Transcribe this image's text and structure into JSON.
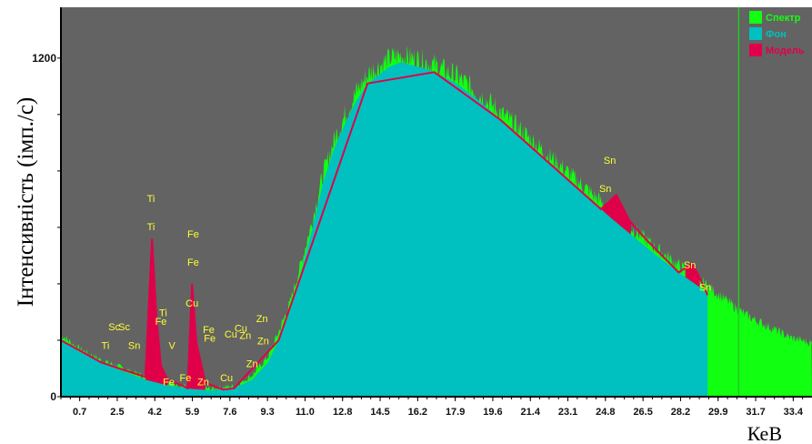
{
  "chart_data": {
    "type": "area",
    "ylabel": "Інтенсивність (імп./с)",
    "xlabel": "КеВ",
    "xlim": [
      0.2,
      34.0
    ],
    "ylim": [
      0,
      1380
    ],
    "x_ticks": [
      "0.7",
      "2.5",
      "4.2",
      "5.9",
      "7.6",
      "9.3",
      "11.0",
      "12.8",
      "14.5",
      "16.2",
      "17.9",
      "19.6",
      "21.4",
      "23.1",
      "24.8",
      "26.5",
      "28.2",
      "29.9",
      "31.7",
      "33.4"
    ],
    "y_tick_labels": [
      {
        "value": 0,
        "label": "0"
      },
      {
        "value": 1200,
        "label": "1200"
      }
    ],
    "colors": {
      "plot_bg": "#636363",
      "spectrum": "#11ff11",
      "background": "#00c0c0",
      "model": "#e0004a",
      "marker_line": "#22cc22",
      "peak_label": "#ffff33"
    },
    "marker_x": 30.7,
    "legend": [
      {
        "label": "Спектр",
        "color": "#11ff11"
      },
      {
        "label": "Фон",
        "color": "#00c0c0"
      },
      {
        "label": "Модель",
        "color": "#e0004a"
      }
    ],
    "series": [
      {
        "name": "Фон",
        "x": [
          0.2,
          1.0,
          2.0,
          3.0,
          4.0,
          5.0,
          6.0,
          7.0,
          8.0,
          8.8,
          9.5,
          10.0,
          10.5,
          11.0,
          11.5,
          12.0,
          12.5,
          13.0,
          13.5,
          14.0,
          15.0,
          15.5,
          16.0,
          16.5,
          17.0,
          18.0,
          19.0,
          20.0,
          21.0,
          22.0,
          23.0,
          24.0,
          25.0,
          26.0,
          27.0,
          28.0,
          29.0,
          29.3
        ],
        "values": [
          200,
          160,
          120,
          90,
          60,
          40,
          28,
          22,
          30,
          60,
          120,
          200,
          300,
          440,
          590,
          760,
          880,
          970,
          1050,
          1110,
          1170,
          1185,
          1175,
          1165,
          1150,
          1110,
          1050,
          980,
          910,
          840,
          770,
          700,
          630,
          565,
          500,
          440,
          385,
          360
        ]
      },
      {
        "name": "Спектр",
        "x": [
          0.2,
          1.0,
          2.0,
          3.0,
          4.0,
          5.0,
          6.0,
          7.0,
          8.0,
          8.8,
          9.5,
          10.0,
          10.5,
          11.0,
          11.5,
          12.0,
          12.5,
          13.0,
          13.5,
          14.0,
          15.0,
          15.5,
          16.0,
          16.5,
          17.0,
          18.0,
          19.0,
          20.0,
          21.0,
          22.0,
          23.0,
          24.0,
          25.0,
          26.0,
          27.0,
          28.0,
          29.0,
          30.0,
          31.0,
          32.0,
          33.0,
          34.0
        ],
        "values": [
          220,
          170,
          130,
          100,
          70,
          48,
          35,
          28,
          38,
          75,
          140,
          230,
          330,
          470,
          620,
          790,
          910,
          1000,
          1080,
          1140,
          1200,
          1210,
          1200,
          1190,
          1175,
          1135,
          1075,
          1005,
          935,
          865,
          795,
          725,
          655,
          590,
          525,
          465,
          410,
          350,
          290,
          250,
          210,
          190
        ]
      },
      {
        "name": "Модель",
        "x": [
          0.2,
          1.0,
          2.0,
          3.0,
          4.0,
          4.3,
          4.5,
          4.7,
          5.0,
          5.5,
          5.9,
          6.1,
          6.3,
          6.7,
          7.5,
          8.0,
          10.0,
          14.0,
          17.0,
          20.0,
          23.0,
          24.5,
          25.2,
          25.8,
          26.5,
          28.0,
          28.6,
          28.9,
          29.3
        ],
        "values": [
          200,
          165,
          122,
          95,
          70,
          560,
          280,
          110,
          60,
          45,
          30,
          400,
          190,
          50,
          25,
          30,
          200,
          1110,
          1150,
          980,
          770,
          665,
          715,
          622,
          560,
          440,
          472,
          430,
          360
        ]
      }
    ],
    "peak_labels": [
      {
        "text": "Ti",
        "x": 4.25,
        "y": 690
      },
      {
        "text": "Ti",
        "x": 4.25,
        "y": 590
      },
      {
        "text": "Fe",
        "x": 6.15,
        "y": 565
      },
      {
        "text": "Fe",
        "x": 6.15,
        "y": 465
      },
      {
        "text": "Cu",
        "x": 6.1,
        "y": 320
      },
      {
        "text": "Sc",
        "x": 2.6,
        "y": 235
      },
      {
        "text": "Sc",
        "x": 3.05,
        "y": 235
      },
      {
        "text": "Ti",
        "x": 2.2,
        "y": 170
      },
      {
        "text": "Sn",
        "x": 3.5,
        "y": 170
      },
      {
        "text": "Fe",
        "x": 4.7,
        "y": 255
      },
      {
        "text": "Ti",
        "x": 4.8,
        "y": 285
      },
      {
        "text": "V",
        "x": 5.2,
        "y": 170
      },
      {
        "text": "Fe",
        "x": 5.05,
        "y": 40
      },
      {
        "text": "Fe",
        "x": 5.8,
        "y": 55
      },
      {
        "text": "Zn",
        "x": 6.6,
        "y": 40
      },
      {
        "text": "Fe",
        "x": 6.85,
        "y": 225
      },
      {
        "text": "Fe",
        "x": 6.9,
        "y": 195
      },
      {
        "text": "Cu",
        "x": 7.65,
        "y": 55
      },
      {
        "text": "Cu",
        "x": 7.85,
        "y": 210
      },
      {
        "text": "Cu",
        "x": 8.3,
        "y": 230
      },
      {
        "text": "Zn",
        "x": 8.5,
        "y": 205
      },
      {
        "text": "Zn",
        "x": 9.25,
        "y": 265
      },
      {
        "text": "Zn",
        "x": 9.3,
        "y": 185
      },
      {
        "text": "Zn",
        "x": 8.8,
        "y": 105
      },
      {
        "text": "Sn",
        "x": 24.9,
        "y": 825
      },
      {
        "text": "Sn",
        "x": 24.7,
        "y": 725
      },
      {
        "text": "Sn",
        "x": 28.5,
        "y": 455
      },
      {
        "text": "Sn",
        "x": 29.2,
        "y": 375
      }
    ]
  }
}
